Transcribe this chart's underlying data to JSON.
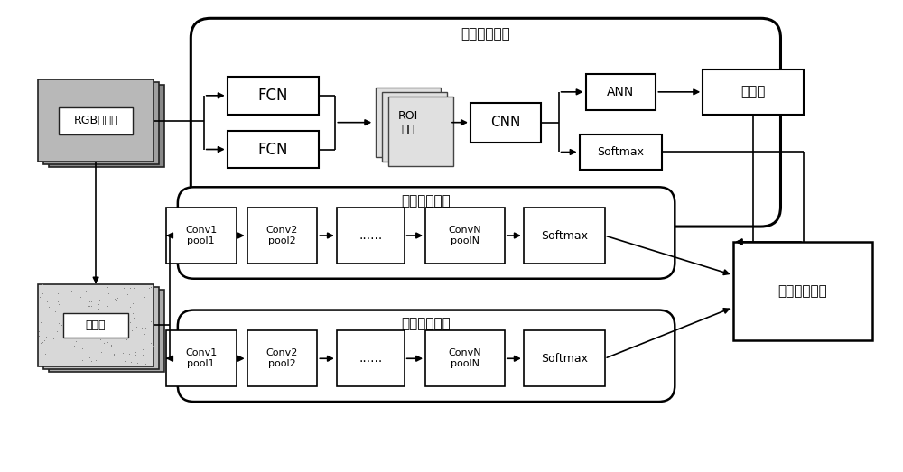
{
  "bg_color": "#ffffff",
  "labels": {
    "rgb": "RGB图像帧",
    "optical": "光流图",
    "model3": "第三分类模型",
    "model1": "第一分类模型",
    "model2": "第二分类模型",
    "fcn1": "FCN",
    "fcn2": "FCN",
    "roi": "ROI\n选取",
    "cnn": "CNN",
    "ann": "ANN",
    "softmax_top": "Softmax",
    "confidence": "置信度",
    "conv1_1": "Conv1\npool1",
    "conv2_1": "Conv2\npool2",
    "dots1": "......",
    "convn1": "ConvN\npoolN",
    "softmax1": "Softmax",
    "conv1_2": "Conv1\npool1",
    "conv2_2": "Conv2\npool2",
    "dots2": "......",
    "convn2": "ConvN\npoolN",
    "softmax2": "Softmax",
    "fusion": "分类结果融合"
  }
}
